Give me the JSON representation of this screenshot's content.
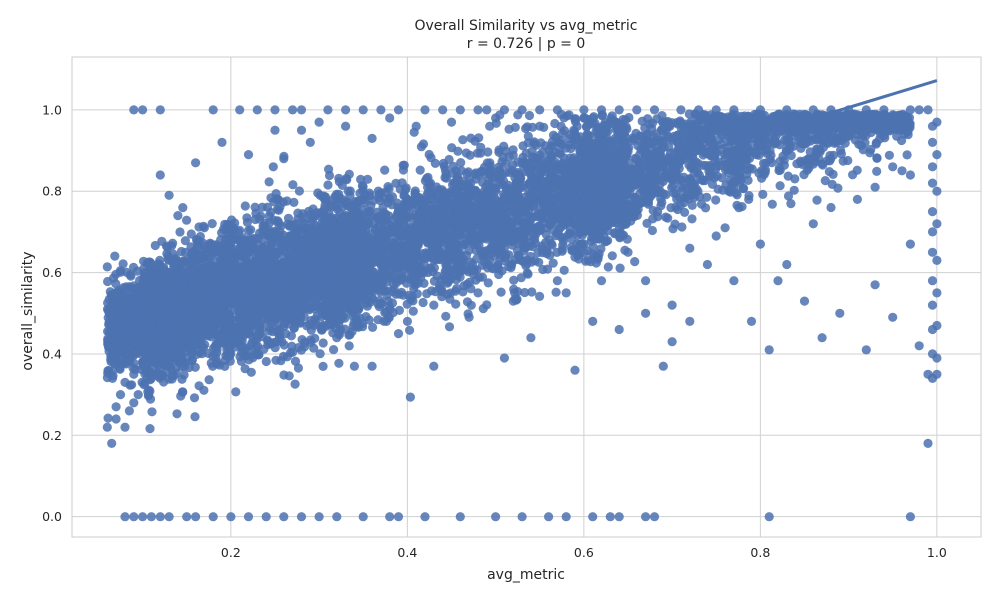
{
  "chart_data": {
    "type": "scatter",
    "title": "Overall Similarity vs avg_metric",
    "subtitle": "r = 0.726  |  p = 0",
    "xlabel": "avg_metric",
    "ylabel": "overall_similarity",
    "xlim": [
      0.02,
      1.05
    ],
    "ylim": [
      -0.05,
      1.13
    ],
    "xticks": [
      "0.2",
      "0.4",
      "0.6",
      "0.8",
      "1.0"
    ],
    "yticks": [
      "0.0",
      "0.2",
      "0.4",
      "0.6",
      "0.8",
      "1.0"
    ],
    "grid": true,
    "regression": {
      "slope": 0.661,
      "intercept": 0.411,
      "x_range": [
        0.058,
        1.0
      ]
    },
    "colors": {
      "points": "#4c72b0",
      "line": "#4c72b0",
      "grid": "#d0d0d0",
      "frame": "#cccccc"
    },
    "series": [
      {
        "points_by_band": [
          {
            "x_min": 0.06,
            "x_max": 0.14,
            "base": [
              0.411,
              0.661
            ],
            "spread": 0.06,
            "count": 700
          },
          {
            "x_min": 0.1,
            "x_max": 0.35,
            "base": [
              0.411,
              0.661
            ],
            "spread": 0.08,
            "count": 3000
          },
          {
            "x_min": 0.3,
            "x_max": 0.65,
            "base": [
              0.411,
              0.661
            ],
            "spread": 0.08,
            "count": 2600
          },
          {
            "x_min": 0.6,
            "x_max": 0.97,
            "base": [
              0.411,
              0.661
            ],
            "spread": 0.07,
            "count": 1700
          }
        ],
        "top_row": [
          [
            0.09,
            1.0
          ],
          [
            0.1,
            1.0
          ],
          [
            0.12,
            1.0
          ],
          [
            0.18,
            1.0
          ],
          [
            0.21,
            1.0
          ],
          [
            0.23,
            1.0
          ],
          [
            0.25,
            1.0
          ],
          [
            0.27,
            1.0
          ],
          [
            0.28,
            1.0
          ],
          [
            0.31,
            1.0
          ],
          [
            0.33,
            1.0
          ],
          [
            0.35,
            1.0
          ],
          [
            0.37,
            1.0
          ],
          [
            0.39,
            1.0
          ],
          [
            0.42,
            1.0
          ],
          [
            0.44,
            1.0
          ],
          [
            0.46,
            1.0
          ],
          [
            0.48,
            1.0
          ],
          [
            0.49,
            1.0
          ],
          [
            0.51,
            1.0
          ],
          [
            0.53,
            1.0
          ],
          [
            0.55,
            1.0
          ],
          [
            0.57,
            1.0
          ],
          [
            0.6,
            1.0
          ],
          [
            0.62,
            1.0
          ],
          [
            0.64,
            1.0
          ],
          [
            0.66,
            1.0
          ],
          [
            0.68,
            1.0
          ],
          [
            0.71,
            1.0
          ],
          [
            0.73,
            1.0
          ],
          [
            0.75,
            1.0
          ],
          [
            0.77,
            1.0
          ],
          [
            0.8,
            1.0
          ],
          [
            0.83,
            1.0
          ],
          [
            0.86,
            1.0
          ],
          [
            0.88,
            1.0
          ],
          [
            0.9,
            1.0
          ],
          [
            0.92,
            1.0
          ],
          [
            0.94,
            1.0
          ],
          [
            0.97,
            1.0
          ],
          [
            0.98,
            1.0
          ],
          [
            0.99,
            1.0
          ]
        ],
        "bottom_row": [
          [
            0.08,
            0.0
          ],
          [
            0.09,
            0.0
          ],
          [
            0.1,
            0.0
          ],
          [
            0.11,
            0.0
          ],
          [
            0.12,
            0.0
          ],
          [
            0.13,
            0.0
          ],
          [
            0.15,
            0.0
          ],
          [
            0.16,
            0.0
          ],
          [
            0.18,
            0.0
          ],
          [
            0.2,
            0.0
          ],
          [
            0.22,
            0.0
          ],
          [
            0.24,
            0.0
          ],
          [
            0.26,
            0.0
          ],
          [
            0.28,
            0.0
          ],
          [
            0.3,
            0.0
          ],
          [
            0.32,
            0.0
          ],
          [
            0.35,
            0.0
          ],
          [
            0.38,
            0.0
          ],
          [
            0.39,
            0.0
          ],
          [
            0.42,
            0.0
          ],
          [
            0.46,
            0.0
          ],
          [
            0.5,
            0.0
          ],
          [
            0.53,
            0.0
          ],
          [
            0.56,
            0.0
          ],
          [
            0.58,
            0.0
          ],
          [
            0.61,
            0.0
          ],
          [
            0.63,
            0.0
          ],
          [
            0.64,
            0.0
          ],
          [
            0.67,
            0.0
          ],
          [
            0.68,
            0.0
          ],
          [
            0.81,
            0.0
          ],
          [
            0.97,
            0.0
          ]
        ],
        "low_outliers": [
          [
            0.32,
            0.44
          ],
          [
            0.34,
            0.37
          ],
          [
            0.36,
            0.37
          ],
          [
            0.39,
            0.45
          ],
          [
            0.43,
            0.37
          ],
          [
            0.47,
            0.49
          ],
          [
            0.51,
            0.39
          ],
          [
            0.54,
            0.44
          ],
          [
            0.57,
            0.58
          ],
          [
            0.59,
            0.36
          ],
          [
            0.61,
            0.48
          ],
          [
            0.64,
            0.46
          ],
          [
            0.67,
            0.5
          ],
          [
            0.69,
            0.37
          ],
          [
            0.7,
            0.43
          ],
          [
            0.72,
            0.48
          ],
          [
            0.74,
            0.62
          ],
          [
            0.76,
            0.71
          ],
          [
            0.79,
            0.48
          ],
          [
            0.81,
            0.41
          ],
          [
            0.82,
            0.58
          ],
          [
            0.85,
            0.53
          ],
          [
            0.87,
            0.44
          ],
          [
            0.89,
            0.5
          ],
          [
            0.92,
            0.41
          ],
          [
            0.93,
            0.57
          ],
          [
            0.95,
            0.49
          ],
          [
            0.97,
            0.67
          ],
          [
            0.98,
            0.42
          ],
          [
            0.99,
            0.35
          ]
        ],
        "right_column": [
          [
            0.995,
            0.96
          ],
          [
            0.995,
            0.92
          ],
          [
            0.995,
            0.86
          ],
          [
            0.995,
            0.82
          ],
          [
            0.995,
            0.75
          ],
          [
            0.995,
            0.7
          ],
          [
            0.995,
            0.65
          ],
          [
            0.995,
            0.58
          ],
          [
            0.995,
            0.52
          ],
          [
            0.995,
            0.46
          ],
          [
            0.995,
            0.4
          ],
          [
            0.995,
            0.34
          ],
          [
            1.0,
            0.97
          ],
          [
            1.0,
            0.89
          ],
          [
            1.0,
            0.8
          ],
          [
            1.0,
            0.72
          ],
          [
            1.0,
            0.63
          ],
          [
            1.0,
            0.55
          ],
          [
            1.0,
            0.47
          ],
          [
            1.0,
            0.39
          ],
          [
            1.0,
            0.35
          ],
          [
            0.99,
            0.18
          ]
        ],
        "left_tail": [
          [
            0.06,
            0.22
          ],
          [
            0.065,
            0.18
          ],
          [
            0.07,
            0.24
          ],
          [
            0.07,
            0.27
          ],
          [
            0.075,
            0.3
          ],
          [
            0.08,
            0.33
          ],
          [
            0.085,
            0.26
          ],
          [
            0.09,
            0.35
          ],
          [
            0.095,
            0.3
          ],
          [
            0.1,
            0.38
          ],
          [
            0.08,
            0.22
          ],
          [
            0.09,
            0.28
          ]
        ],
        "scattered_mid": [
          [
            0.12,
            0.84
          ],
          [
            0.13,
            0.79
          ],
          [
            0.14,
            0.74
          ],
          [
            0.16,
            0.87
          ],
          [
            0.17,
            0.71
          ],
          [
            0.19,
            0.92
          ],
          [
            0.2,
            0.66
          ],
          [
            0.22,
            0.89
          ],
          [
            0.23,
            0.58
          ],
          [
            0.25,
            0.95
          ],
          [
            0.26,
            0.88
          ],
          [
            0.28,
            0.95
          ],
          [
            0.29,
            0.92
          ],
          [
            0.3,
            0.97
          ],
          [
            0.31,
            0.54
          ],
          [
            0.33,
            0.96
          ],
          [
            0.34,
            0.59
          ],
          [
            0.36,
            0.93
          ],
          [
            0.38,
            0.98
          ],
          [
            0.4,
            0.48
          ],
          [
            0.41,
            0.96
          ],
          [
            0.43,
            0.52
          ],
          [
            0.45,
            0.97
          ],
          [
            0.48,
            0.55
          ],
          [
            0.5,
            0.98
          ],
          [
            0.52,
            0.53
          ],
          [
            0.55,
            0.96
          ],
          [
            0.58,
            0.55
          ],
          [
            0.6,
            0.98
          ],
          [
            0.62,
            0.58
          ],
          [
            0.65,
            0.65
          ],
          [
            0.67,
            0.58
          ],
          [
            0.7,
            0.52
          ],
          [
            0.72,
            0.66
          ],
          [
            0.75,
            0.69
          ],
          [
            0.77,
            0.58
          ],
          [
            0.8,
            0.67
          ],
          [
            0.83,
            0.62
          ],
          [
            0.86,
            0.72
          ],
          [
            0.88,
            0.76
          ],
          [
            0.91,
            0.78
          ],
          [
            0.93,
            0.81
          ],
          [
            0.95,
            0.86
          ],
          [
            0.97,
            0.84
          ]
        ]
      }
    ]
  }
}
